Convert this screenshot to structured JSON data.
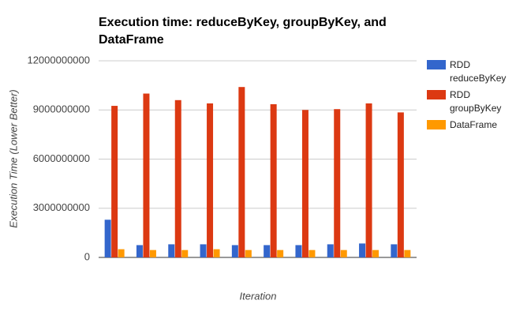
{
  "chart_data": {
    "type": "bar",
    "title": "Execution time: reduceByKey, groupByKey, and DataFrame",
    "x_label": "Iteration",
    "y_label": "Execution Time (Lower Better)",
    "categories": [
      null,
      null,
      null,
      null,
      null,
      null,
      null,
      null,
      null,
      null
    ],
    "series": [
      {
        "name": "RDD reduceByKey",
        "color": "#3366cc",
        "values": [
          2300000000,
          750000000,
          800000000,
          800000000,
          750000000,
          750000000,
          750000000,
          800000000,
          850000000,
          800000000
        ]
      },
      {
        "name": "RDD groupByKey",
        "color": "#dc3912",
        "values": [
          9250000000,
          10000000000,
          9600000000,
          9400000000,
          10400000000,
          9350000000,
          9000000000,
          9050000000,
          9400000000,
          8850000000
        ]
      },
      {
        "name": "DataFrame",
        "color": "#ff9900",
        "values": [
          500000000,
          450000000,
          450000000,
          500000000,
          450000000,
          450000000,
          450000000,
          450000000,
          450000000,
          450000000
        ]
      }
    ],
    "ylim": [
      0,
      12000000000
    ],
    "yticks": [
      0,
      3000000000,
      6000000000,
      9000000000,
      12000000000
    ],
    "grid": true,
    "legend": "right"
  }
}
